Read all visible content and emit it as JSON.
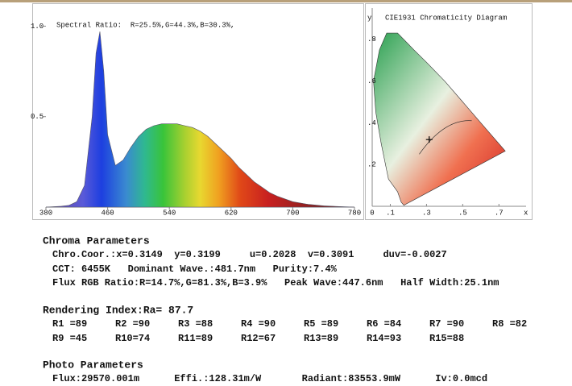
{
  "chart_data": [
    {
      "type": "area",
      "annotation": "Spectral Ratio:  R=25.5%,G=44.3%,B=30.3%,",
      "x": [
        380,
        400,
        410,
        420,
        430,
        440,
        445,
        450,
        455,
        460,
        470,
        480,
        490,
        500,
        510,
        520,
        530,
        540,
        550,
        560,
        570,
        580,
        590,
        600,
        610,
        620,
        630,
        640,
        650,
        660,
        670,
        680,
        700,
        720,
        740,
        760,
        780
      ],
      "values": [
        0,
        0.005,
        0.01,
        0.03,
        0.12,
        0.5,
        0.85,
        0.97,
        0.75,
        0.4,
        0.23,
        0.26,
        0.33,
        0.39,
        0.43,
        0.45,
        0.46,
        0.46,
        0.46,
        0.45,
        0.44,
        0.42,
        0.39,
        0.35,
        0.31,
        0.27,
        0.22,
        0.18,
        0.14,
        0.11,
        0.08,
        0.06,
        0.03,
        0.015,
        0.007,
        0.003,
        0
      ],
      "xlim": [
        380,
        780
      ],
      "ylim": [
        0,
        1.1
      ],
      "xticks": [
        380,
        460,
        540,
        620,
        700,
        780
      ],
      "yticks": [
        0.5,
        {
          "value": 1,
          "label": "1.0"
        }
      ]
    },
    {
      "type": "cie",
      "title": "CIE1931 Chromaticity Diagram",
      "xlabel": "x",
      "ylabel": "y",
      "x": [
        0.3149
      ],
      "values": [
        0.3199
      ],
      "xlim": [
        0,
        0.85
      ],
      "ylim": [
        0,
        0.95
      ],
      "xticks": [
        0,
        {
          "value": 0.1,
          "label": ".1"
        },
        {
          "value": 0.3,
          "label": ".3"
        },
        {
          "value": 0.5,
          "label": ".5"
        },
        {
          "value": 0.7,
          "label": ".7"
        }
      ],
      "yticks": [
        {
          "value": 0.2,
          "label": ".2"
        },
        {
          "value": 0.4,
          "label": ".4"
        },
        {
          "value": 0.6,
          "label": ".6"
        },
        {
          "value": 0.8,
          "label": ".8"
        }
      ]
    }
  ],
  "chroma": {
    "title": "Chroma Parameters",
    "lines": [
      "Chro.Coor.:x=0.3149  y=0.3199     u=0.2028  v=0.3091     duv=-0.0027",
      "CCT: 6455K   Dominant Wave.:481.7nm   Purity:7.4%",
      "Flux RGB Ratio:R=14.7%,G=81.3%,B=3.9%   Peak Wave:447.6nm   Half Width:25.1nm"
    ]
  },
  "rendering": {
    "title": "Rendering Index:Ra= 87.7",
    "items": [
      "R1 =89",
      "R2 =90",
      "R3 =88",
      "R4 =90",
      "R5 =89",
      "R6 =84",
      "R7 =90",
      "R8 =82",
      "R9 =45",
      "R10=74",
      "R11=89",
      "R12=67",
      "R13=89",
      "R14=93",
      "R15=88"
    ]
  },
  "photo": {
    "title": "Photo Parameters",
    "line": "Flux:29570.001m      Effi.:128.31m/W       Radiant:83553.9mW      Iv:0.0mcd"
  }
}
